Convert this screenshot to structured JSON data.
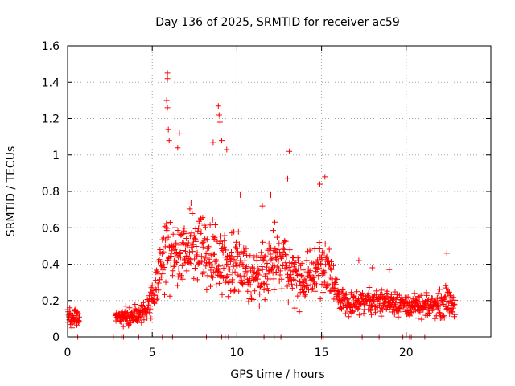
{
  "chart_data": {
    "type": "scatter",
    "title": "Day 136 of 2025, SRMTID for receiver ac59",
    "xlabel": "GPS time / hours",
    "ylabel": "SRMTID / TECUs",
    "xlim": [
      0,
      25
    ],
    "ylim": [
      0,
      1.6
    ],
    "xticks": [
      0,
      5,
      10,
      15,
      20
    ],
    "xtick_labels": [
      "0",
      "5",
      "10",
      "15",
      "20"
    ],
    "yticks": [
      0,
      0.2,
      0.4,
      0.6,
      0.8,
      1.0,
      1.2,
      1.4,
      1.6
    ],
    "ytick_labels": [
      "0",
      "0.2",
      "0.4",
      "0.6",
      "0.8",
      "1",
      "1.2",
      "1.4",
      "1.6"
    ],
    "grid": true,
    "marker": "+",
    "color": "#ff0000",
    "envelope": {
      "hours": [
        0.0,
        0.7,
        2.8,
        3.5,
        4.5,
        5.0,
        5.3,
        5.6,
        6.0,
        6.5,
        7.0,
        7.5,
        8.0,
        8.5,
        9.0,
        9.5,
        10.0,
        10.5,
        11.0,
        11.5,
        12.0,
        12.5,
        13.0,
        13.5,
        14.0,
        14.5,
        15.0,
        15.3,
        15.6,
        16.0,
        16.5,
        17.0,
        17.5,
        18.0,
        18.5,
        19.0,
        19.5,
        20.0,
        20.5,
        21.0,
        21.5,
        22.0,
        22.5,
        22.9
      ],
      "typical_srmtid": [
        0.11,
        0.1,
        0.1,
        0.11,
        0.13,
        0.2,
        0.32,
        0.42,
        0.45,
        0.45,
        0.48,
        0.52,
        0.5,
        0.45,
        0.4,
        0.38,
        0.45,
        0.36,
        0.3,
        0.4,
        0.38,
        0.42,
        0.4,
        0.32,
        0.3,
        0.33,
        0.42,
        0.36,
        0.3,
        0.22,
        0.2,
        0.18,
        0.2,
        0.2,
        0.19,
        0.2,
        0.19,
        0.17,
        0.17,
        0.16,
        0.17,
        0.18,
        0.2,
        0.17
      ],
      "spread_srmtid": [
        0.04,
        0.04,
        0.03,
        0.04,
        0.05,
        0.08,
        0.12,
        0.15,
        0.2,
        0.18,
        0.17,
        0.16,
        0.17,
        0.16,
        0.17,
        0.15,
        0.16,
        0.14,
        0.12,
        0.14,
        0.14,
        0.15,
        0.15,
        0.12,
        0.1,
        0.12,
        0.15,
        0.12,
        0.1,
        0.06,
        0.06,
        0.05,
        0.06,
        0.06,
        0.06,
        0.06,
        0.06,
        0.05,
        0.05,
        0.05,
        0.05,
        0.06,
        0.07,
        0.05
      ],
      "samples_per_hour": 55
    },
    "peaks": [
      {
        "hour": 5.9,
        "srmtid": 1.45
      },
      {
        "hour": 5.9,
        "srmtid": 1.42
      },
      {
        "hour": 5.85,
        "srmtid": 1.3
      },
      {
        "hour": 5.9,
        "srmtid": 1.26
      },
      {
        "hour": 5.95,
        "srmtid": 1.14
      },
      {
        "hour": 6.0,
        "srmtid": 1.08
      },
      {
        "hour": 6.6,
        "srmtid": 1.12
      },
      {
        "hour": 6.5,
        "srmtid": 1.04
      },
      {
        "hour": 8.9,
        "srmtid": 1.27
      },
      {
        "hour": 8.95,
        "srmtid": 1.22
      },
      {
        "hour": 9.0,
        "srmtid": 1.18
      },
      {
        "hour": 8.6,
        "srmtid": 1.07
      },
      {
        "hour": 9.1,
        "srmtid": 1.08
      },
      {
        "hour": 9.4,
        "srmtid": 1.03
      },
      {
        "hour": 13.1,
        "srmtid": 1.02
      },
      {
        "hour": 13.0,
        "srmtid": 0.87
      },
      {
        "hour": 15.2,
        "srmtid": 0.88
      },
      {
        "hour": 14.9,
        "srmtid": 0.84
      },
      {
        "hour": 12.0,
        "srmtid": 0.78
      },
      {
        "hour": 11.5,
        "srmtid": 0.72
      },
      {
        "hour": 10.2,
        "srmtid": 0.78
      },
      {
        "hour": 22.4,
        "srmtid": 0.46
      },
      {
        "hour": 17.2,
        "srmtid": 0.42
      },
      {
        "hour": 19.0,
        "srmtid": 0.37
      },
      {
        "hour": 18.0,
        "srmtid": 0.38
      }
    ],
    "zero_markers": [
      0.6,
      2.7,
      3.2,
      3.3,
      4.2,
      5.6,
      6.2,
      8.2,
      9.1,
      9.3,
      9.5,
      11.6,
      12.2,
      12.6,
      15.0,
      15.1,
      17.4,
      18.4,
      19.8,
      20.2,
      20.3,
      21.1
    ]
  }
}
